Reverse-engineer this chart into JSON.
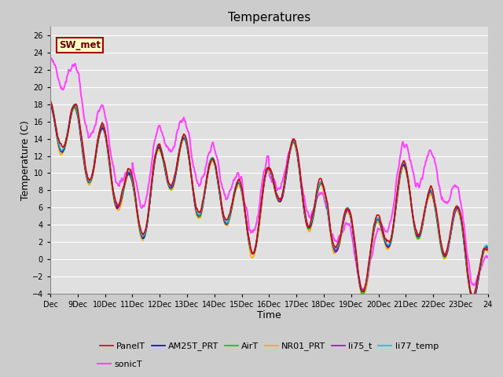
{
  "title": "Temperatures",
  "xlabel": "Time",
  "ylabel": "Temperature (C)",
  "ylim": [
    -4,
    27
  ],
  "yticks": [
    -4,
    -2,
    0,
    2,
    4,
    6,
    8,
    10,
    12,
    14,
    16,
    18,
    20,
    22,
    24,
    26
  ],
  "x_tick_labels": [
    "Dec",
    "9Dec",
    "10Dec",
    "11Dec",
    "12Dec",
    "13Dec",
    "14Dec",
    "15Dec",
    "16Dec",
    "17Dec",
    "18Dec",
    "19Dec",
    "20Dec",
    "21Dec",
    "22Dec",
    "23Dec",
    "24"
  ],
  "series_names": [
    "PanelT",
    "AM25T_PRT",
    "AirT",
    "NR01_PRT",
    "li75_t",
    "li77_temp",
    "sonicT"
  ],
  "series_colors": {
    "PanelT": "#dd0000",
    "AM25T_PRT": "#0000dd",
    "AirT": "#00cc00",
    "NR01_PRT": "#ffaa00",
    "li75_t": "#aa00cc",
    "li77_temp": "#00cccc",
    "sonicT": "#ff44ff"
  },
  "series_lw": {
    "PanelT": 1.2,
    "AM25T_PRT": 1.2,
    "AirT": 1.2,
    "NR01_PRT": 1.2,
    "li75_t": 1.2,
    "li77_temp": 1.2,
    "sonicT": 1.5
  },
  "sw_met_facecolor": "#ffffcc",
  "sw_met_edgecolor": "#aa0000",
  "sw_met_textcolor": "#660000",
  "fig_facecolor": "#cccccc",
  "plot_facecolor": "#e0e0e0",
  "grid_color": "#ffffff",
  "tick_fontsize": 7,
  "label_fontsize": 9,
  "title_fontsize": 11,
  "legend_fontsize": 8
}
